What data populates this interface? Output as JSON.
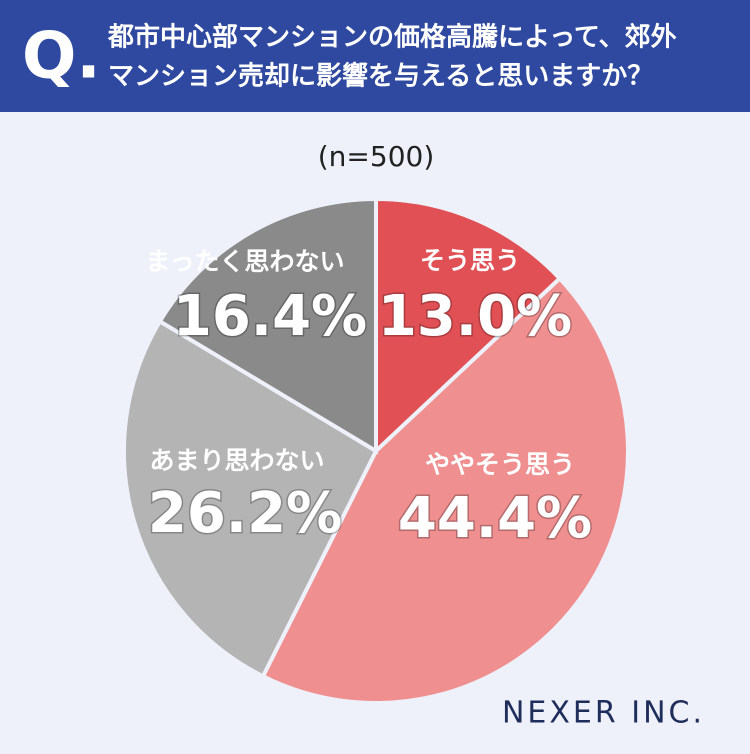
{
  "chart_data": {
    "type": "pie",
    "question_mark": "Q.",
    "title_lines": [
      "都市中心部マンションの価格高騰によって、郊外",
      "マンション売却に影響を与えると思いますか？"
    ],
    "subtitle": "(n=500)",
    "categories": [
      "そう思う",
      "ややそう思う",
      "あまり思わない",
      "まったく思わない"
    ],
    "values": [
      13.0,
      44.4,
      26.2,
      16.4
    ],
    "value_labels": [
      "13.0%",
      "44.4%",
      "26.2%",
      "16.4%"
    ],
    "colors": [
      "#e05055",
      "#ef8f90",
      "#b4b4b4",
      "#8a8a8a"
    ],
    "brand": "NEXER INC."
  }
}
